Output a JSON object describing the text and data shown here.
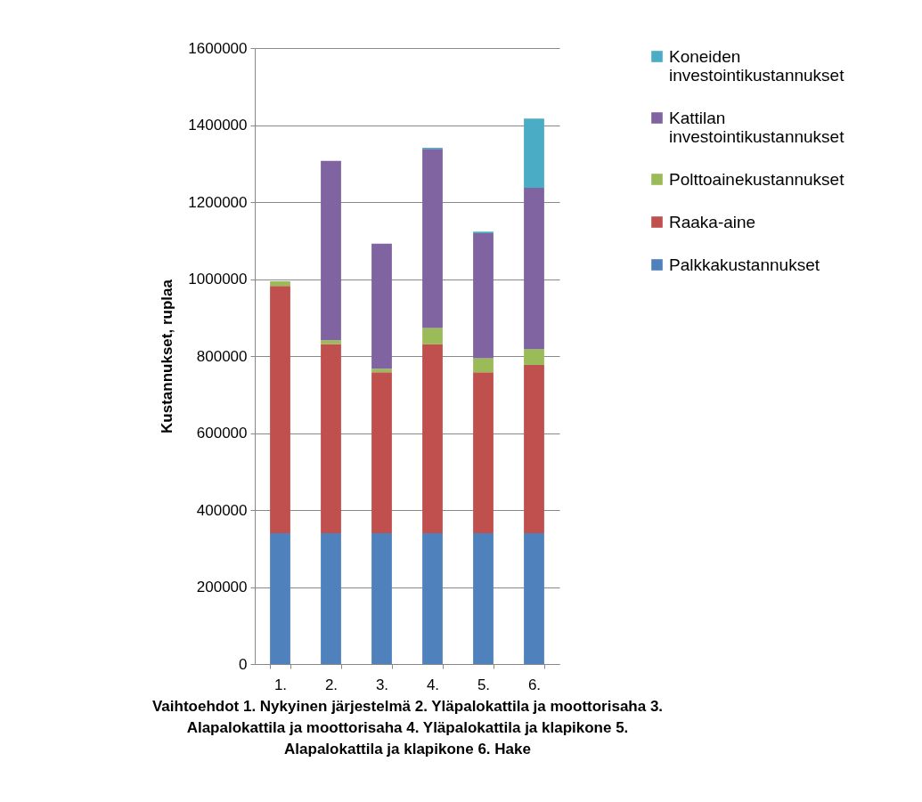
{
  "chart_data": {
    "type": "bar",
    "stacked": true,
    "xlabel": "Vaihtoehdot 1. Nykyinen järjestelmä 2. Yläpalokattila ja moottorisaha 3. Alapalokattila ja moottorisaha 4. Yläpalokattila ja klapikone 5. Alapalokattila ja klapikone 6. Hake",
    "ylabel": "Kustannukset, ruplaa",
    "categories": [
      "1.",
      "2.",
      "3.",
      "4.",
      "5.",
      "6."
    ],
    "series": [
      {
        "name": "Palkkakustannukset",
        "color": "#4f81bd",
        "values": [
          340000,
          340000,
          340000,
          340000,
          340000,
          340000
        ]
      },
      {
        "name": "Raaka-aine",
        "color": "#c0504d",
        "values": [
          642000,
          491000,
          418000,
          491000,
          418000,
          437000
        ]
      },
      {
        "name": "Polttoainekustannukset",
        "color": "#9bbb59",
        "values": [
          12000,
          10000,
          9000,
          42000,
          36000,
          41000
        ]
      },
      {
        "name": "Kattilan investointikustannukset",
        "color": "#8064a2",
        "values": [
          0,
          466000,
          325000,
          465000,
          325000,
          419000
        ]
      },
      {
        "name": "Koneiden investointikustannukset",
        "color": "#4bacc6",
        "values": [
          0,
          0,
          0,
          3000,
          4000,
          180000
        ]
      }
    ],
    "ylim": [
      0,
      1600000
    ],
    "yticks": [
      0,
      200000,
      400000,
      600000,
      800000,
      1000000,
      1200000,
      1400000,
      1600000
    ],
    "grid": "y",
    "legend": "right"
  }
}
